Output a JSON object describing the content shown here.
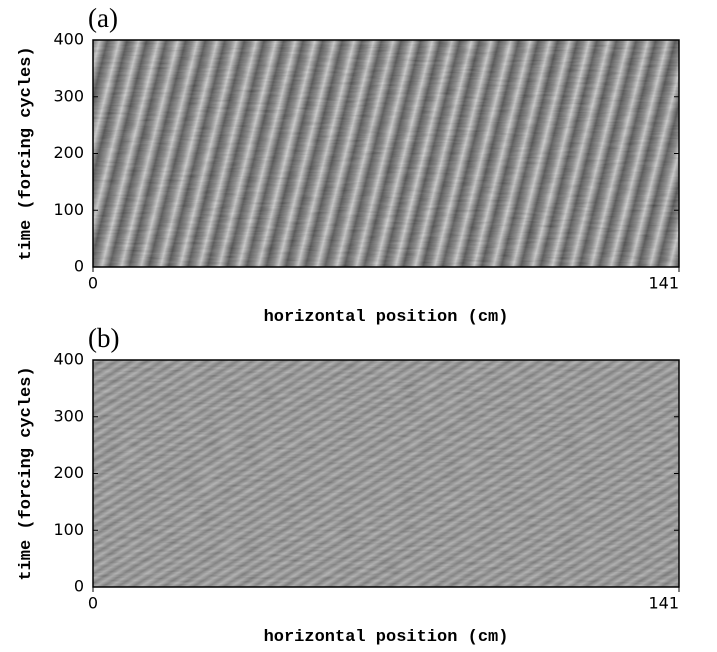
{
  "chart_data": [
    {
      "type": "heatmap",
      "label": "(a)",
      "x_label": "horizontal position (cm)",
      "y_label": "time (forcing cycles)",
      "xlim": [
        0,
        141
      ],
      "xticks": [
        0,
        141
      ],
      "ylim": [
        0,
        400
      ],
      "yticks": [
        0,
        100,
        200,
        300,
        400
      ]
    },
    {
      "type": "heatmap",
      "label": "(b)",
      "x_label": "horizontal position (cm)",
      "y_label": "time (forcing cycles)",
      "xlim": [
        0,
        141
      ],
      "xticks": [
        0,
        141
      ],
      "ylim": [
        0,
        400
      ],
      "yticks": [
        0,
        100,
        200,
        300,
        400
      ]
    }
  ]
}
